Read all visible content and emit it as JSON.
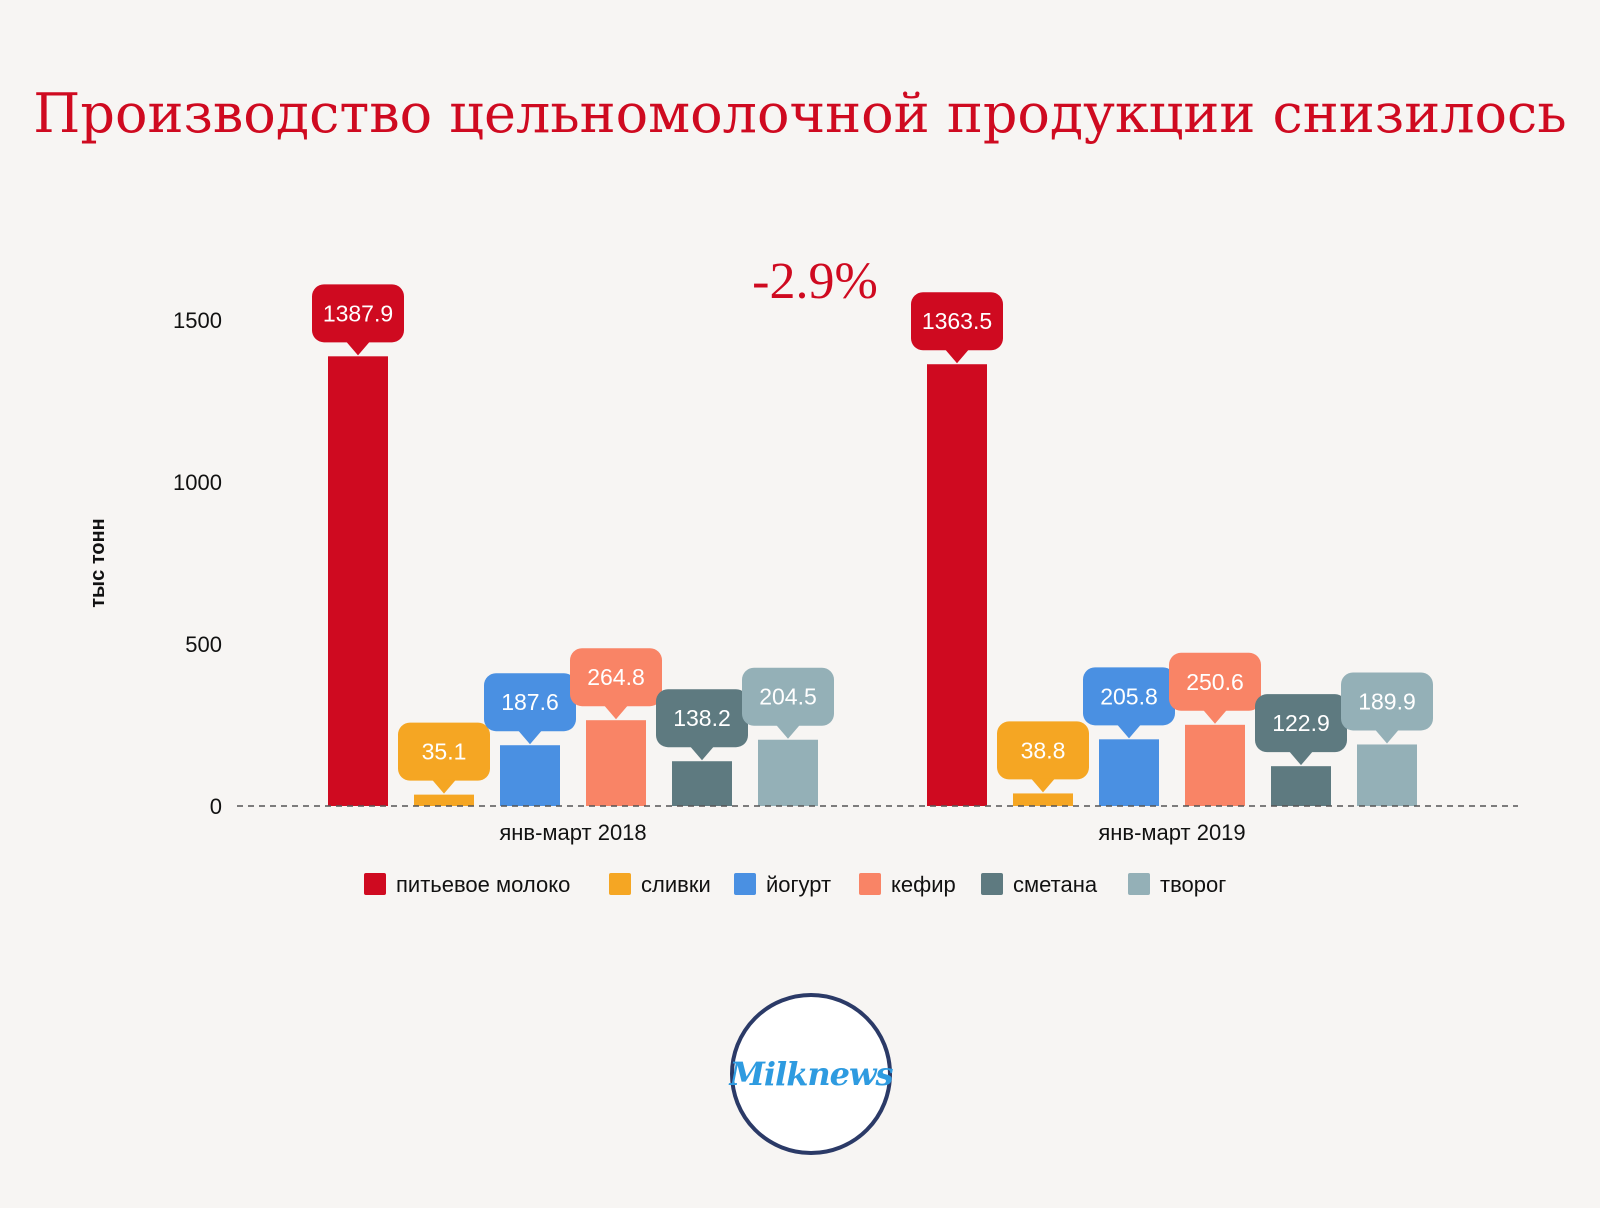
{
  "title": "Производство цельномолочной продукции снизилось",
  "change_label": "-2.9%",
  "logo_text": "Milknews",
  "colors": {
    "title": "#cf0a20",
    "питьевое молоко": "#cf0a20",
    "сливки": "#f5a623",
    "йогурт": "#4a90e2",
    "кефир": "#f98466",
    "сметана": "#5e7a80",
    "творог": "#94b0b7"
  },
  "chart_data": {
    "type": "bar",
    "title": "Производство цельномолочной продукции снизилось",
    "ylabel": "тыс тонн",
    "xlabel": "",
    "ylim": [
      0,
      1500
    ],
    "yticks": [
      0,
      500,
      1000,
      1500
    ],
    "grid": false,
    "legend_position": "bottom",
    "categories": [
      "янв-март 2018",
      "янв-март 2019"
    ],
    "series": [
      {
        "name": "питьевое молоко",
        "values": [
          1387.9,
          1363.5
        ],
        "color": "#cf0a20"
      },
      {
        "name": "сливки",
        "values": [
          35.1,
          38.8
        ],
        "color": "#f5a623"
      },
      {
        "name": "йогурт",
        "values": [
          187.6,
          205.8
        ],
        "color": "#4a90e2"
      },
      {
        "name": "кефир",
        "values": [
          264.8,
          250.6
        ],
        "color": "#f98466"
      },
      {
        "name": "сметана",
        "values": [
          138.2,
          122.9
        ],
        "color": "#5e7a80"
      },
      {
        "name": "творог",
        "values": [
          204.5,
          189.9
        ],
        "color": "#94b0b7"
      }
    ],
    "annotations": [
      "-2.9%"
    ]
  }
}
